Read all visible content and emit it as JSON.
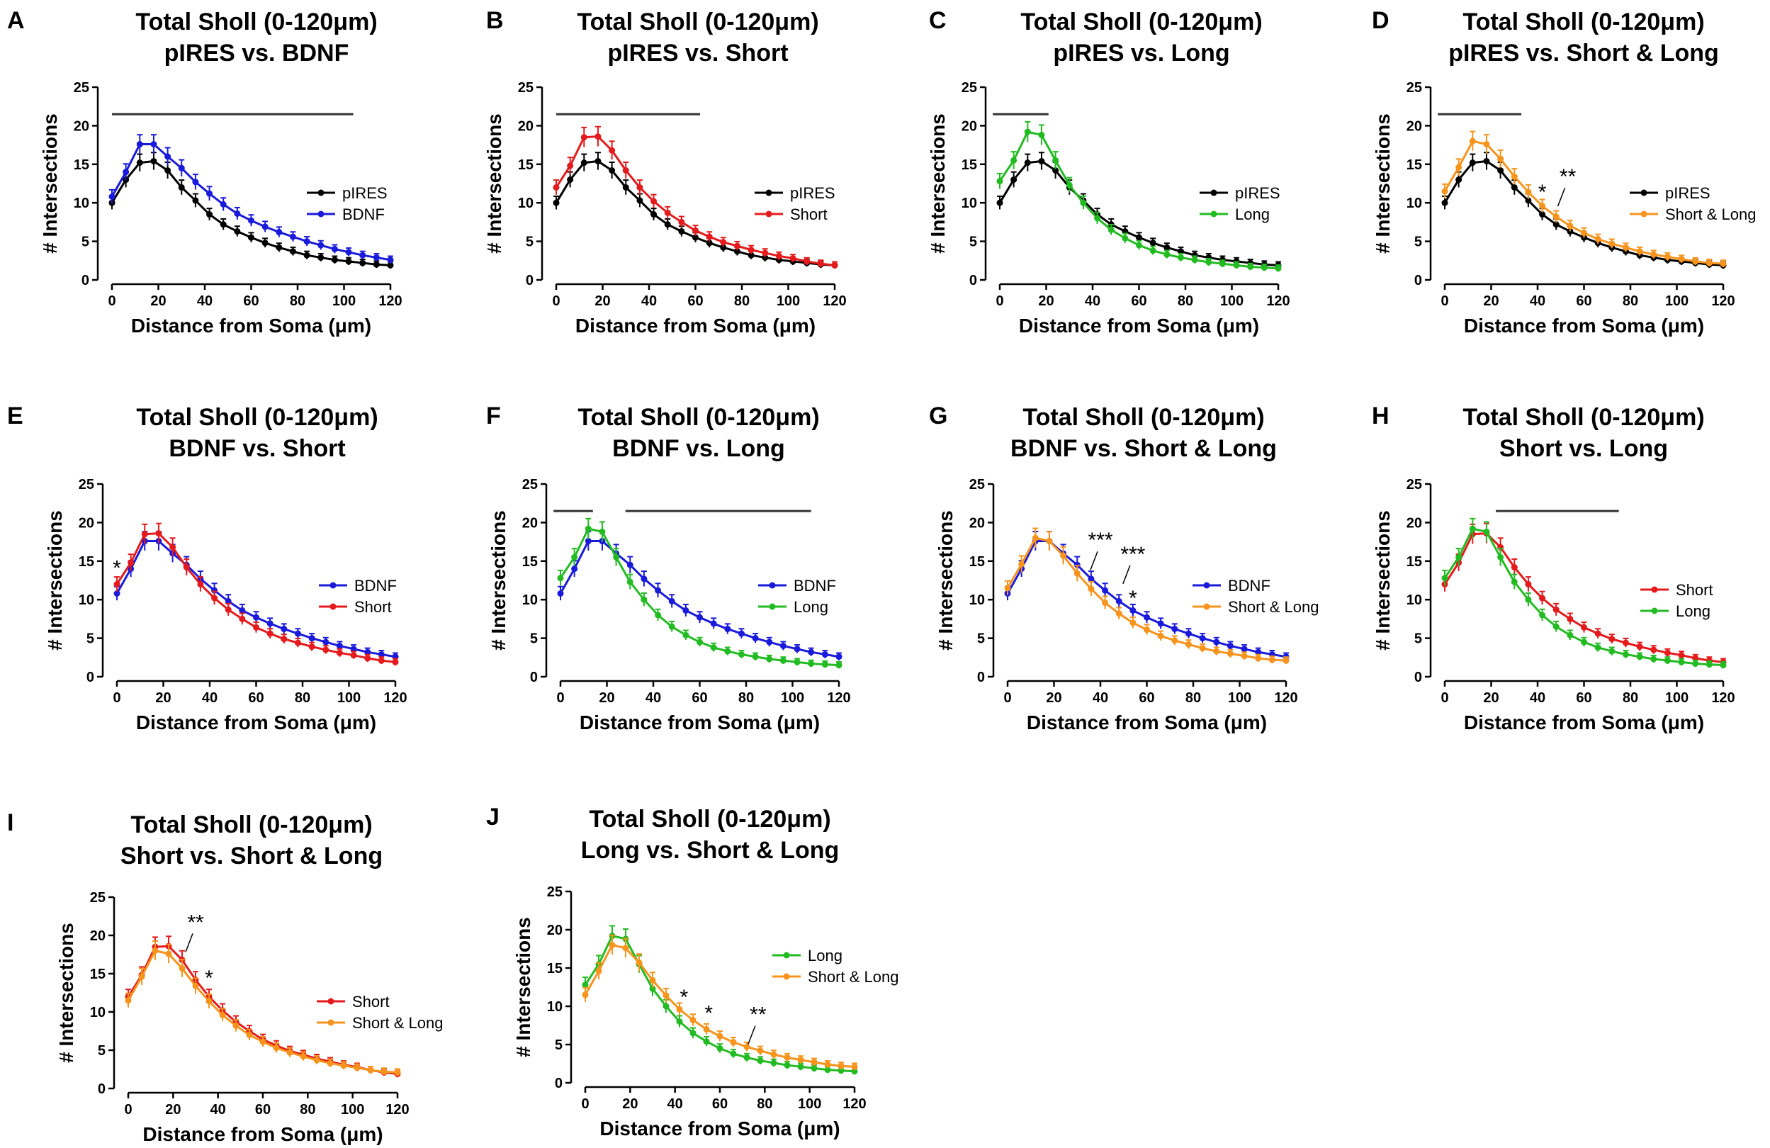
{
  "figure_caption": "",
  "colors": {
    "pIRES": "#000000",
    "BDNF": "#1a1adb",
    "Short": "#e41a1c",
    "Long": "#22bb22",
    "Short & Long": "#f7941d",
    "axis": "#000000",
    "sigbar": "#333333"
  },
  "chart_data": [
    {
      "type": "line",
      "panel": "A",
      "title_line1": "Total Sholl (0-120μm)",
      "title_line2": "pIRES vs. BDNF",
      "xlabel": "Distance from Soma (μm)",
      "ylabel": "# Intersections",
      "xlim": [
        0,
        120
      ],
      "ylim": [
        0,
        25
      ],
      "xticks": [
        0,
        20,
        40,
        60,
        80,
        100,
        120
      ],
      "yticks": [
        0,
        5,
        10,
        15,
        20,
        25
      ],
      "x": [
        0,
        6,
        12,
        18,
        24,
        30,
        36,
        42,
        48,
        54,
        60,
        66,
        72,
        78,
        84,
        90,
        96,
        102,
        108,
        114,
        120
      ],
      "series": [
        {
          "name": "pIRES",
          "values": [
            10.0,
            13.0,
            15.2,
            15.4,
            14.2,
            12.0,
            10.3,
            8.5,
            7.2,
            6.3,
            5.5,
            4.8,
            4.2,
            3.7,
            3.2,
            2.9,
            2.6,
            2.4,
            2.2,
            2.0,
            1.9
          ]
        },
        {
          "name": "BDNF",
          "values": [
            10.8,
            14.0,
            17.6,
            17.6,
            16.0,
            14.5,
            12.7,
            11.2,
            9.8,
            8.6,
            7.7,
            6.9,
            6.2,
            5.6,
            5.0,
            4.5,
            4.0,
            3.6,
            3.2,
            2.9,
            2.6
          ]
        }
      ],
      "sig_bars": [
        [
          0,
          104
        ]
      ],
      "annotations": []
    },
    {
      "type": "line",
      "panel": "B",
      "title_line1": "Total Sholl (0-120μm)",
      "title_line2": "pIRES vs. Short",
      "xlabel": "Distance from Soma (μm)",
      "ylabel": "# Intersections",
      "xlim": [
        0,
        120
      ],
      "ylim": [
        0,
        25
      ],
      "xticks": [
        0,
        20,
        40,
        60,
        80,
        100,
        120
      ],
      "yticks": [
        0,
        5,
        10,
        15,
        20,
        25
      ],
      "x": [
        0,
        6,
        12,
        18,
        24,
        30,
        36,
        42,
        48,
        54,
        60,
        66,
        72,
        78,
        84,
        90,
        96,
        102,
        108,
        114,
        120
      ],
      "series": [
        {
          "name": "pIRES",
          "values": [
            10.0,
            13.0,
            15.2,
            15.4,
            14.2,
            12.0,
            10.3,
            8.5,
            7.2,
            6.3,
            5.5,
            4.8,
            4.2,
            3.7,
            3.2,
            2.9,
            2.6,
            2.4,
            2.2,
            2.0,
            1.9
          ]
        },
        {
          "name": "Short",
          "values": [
            12.0,
            14.8,
            18.5,
            18.6,
            16.8,
            14.2,
            12.0,
            10.2,
            8.7,
            7.5,
            6.4,
            5.6,
            4.9,
            4.4,
            3.9,
            3.5,
            3.1,
            2.8,
            2.4,
            2.1,
            1.9
          ]
        }
      ],
      "sig_bars": [
        [
          0,
          62
        ]
      ],
      "annotations": []
    },
    {
      "type": "line",
      "panel": "C",
      "title_line1": "Total Sholl (0-120μm)",
      "title_line2": "pIRES vs. Long",
      "xlabel": "Distance from Soma (μm)",
      "ylabel": "# Intersections",
      "xlim": [
        0,
        120
      ],
      "ylim": [
        0,
        25
      ],
      "xticks": [
        0,
        20,
        40,
        60,
        80,
        100,
        120
      ],
      "yticks": [
        0,
        5,
        10,
        15,
        20,
        25
      ],
      "x": [
        0,
        6,
        12,
        18,
        24,
        30,
        36,
        42,
        48,
        54,
        60,
        66,
        72,
        78,
        84,
        90,
        96,
        102,
        108,
        114,
        120
      ],
      "series": [
        {
          "name": "pIRES",
          "values": [
            10.0,
            13.0,
            15.2,
            15.4,
            14.2,
            12.0,
            10.3,
            8.5,
            7.2,
            6.3,
            5.5,
            4.8,
            4.2,
            3.7,
            3.2,
            2.9,
            2.6,
            2.4,
            2.2,
            2.0,
            1.9
          ]
        },
        {
          "name": "Long",
          "values": [
            12.8,
            15.5,
            19.2,
            18.8,
            15.5,
            12.3,
            10.0,
            8.0,
            6.5,
            5.4,
            4.5,
            3.8,
            3.3,
            2.9,
            2.6,
            2.3,
            2.1,
            1.9,
            1.7,
            1.6,
            1.5
          ]
        }
      ],
      "sig_bars": [
        [
          -3,
          21
        ]
      ],
      "annotations": []
    },
    {
      "type": "line",
      "panel": "D",
      "title_line1": "Total Sholl (0-120μm)",
      "title_line2": "pIRES vs. Short & Long",
      "xlabel": "Distance from Soma (μm)",
      "ylabel": "# Intersections",
      "xlim": [
        0,
        120
      ],
      "ylim": [
        0,
        25
      ],
      "xticks": [
        0,
        20,
        40,
        60,
        80,
        100,
        120
      ],
      "yticks": [
        0,
        5,
        10,
        15,
        20,
        25
      ],
      "x": [
        0,
        6,
        12,
        18,
        24,
        30,
        36,
        42,
        48,
        54,
        60,
        66,
        72,
        78,
        84,
        90,
        96,
        102,
        108,
        114,
        120
      ],
      "series": [
        {
          "name": "pIRES",
          "values": [
            10.0,
            13.0,
            15.2,
            15.4,
            14.2,
            12.0,
            10.3,
            8.5,
            7.2,
            6.3,
            5.5,
            4.8,
            4.2,
            3.7,
            3.2,
            2.9,
            2.6,
            2.4,
            2.2,
            2.0,
            1.9
          ]
        },
        {
          "name": "Short & Long",
          "values": [
            11.5,
            14.6,
            18.0,
            17.6,
            15.7,
            13.4,
            11.4,
            9.6,
            8.2,
            7.0,
            6.1,
            5.3,
            4.7,
            4.2,
            3.7,
            3.3,
            3.0,
            2.7,
            2.4,
            2.2,
            2.1
          ]
        }
      ],
      "sig_bars": [
        [
          -3,
          33
        ]
      ],
      "annotations": [
        {
          "text": "*",
          "x": 42,
          "y": 10.5
        },
        {
          "text": "**",
          "x": 53,
          "y": 12.5,
          "leader": true
        }
      ]
    },
    {
      "type": "line",
      "panel": "E",
      "title_line1": "Total Sholl (0-120μm)",
      "title_line2": "BDNF vs. Short",
      "xlabel": "Distance from Soma (μm)",
      "ylabel": "# Intersections",
      "xlim": [
        0,
        120
      ],
      "ylim": [
        0,
        25
      ],
      "xticks": [
        0,
        20,
        40,
        60,
        80,
        100,
        120
      ],
      "yticks": [
        0,
        5,
        10,
        15,
        20,
        25
      ],
      "x": [
        0,
        6,
        12,
        18,
        24,
        30,
        36,
        42,
        48,
        54,
        60,
        66,
        72,
        78,
        84,
        90,
        96,
        102,
        108,
        114,
        120
      ],
      "series": [
        {
          "name": "BDNF",
          "values": [
            10.8,
            14.0,
            17.6,
            17.6,
            16.0,
            14.5,
            12.7,
            11.2,
            9.8,
            8.6,
            7.7,
            6.9,
            6.2,
            5.6,
            5.0,
            4.5,
            4.0,
            3.6,
            3.2,
            2.9,
            2.6
          ]
        },
        {
          "name": "Short",
          "values": [
            12.0,
            14.8,
            18.5,
            18.6,
            16.8,
            14.2,
            12.0,
            10.2,
            8.7,
            7.5,
            6.4,
            5.6,
            4.9,
            4.4,
            3.9,
            3.5,
            3.1,
            2.8,
            2.4,
            2.1,
            1.9
          ]
        }
      ],
      "sig_bars": [],
      "annotations": [
        {
          "text": "*",
          "x": 0,
          "y": 13.2
        }
      ]
    },
    {
      "type": "line",
      "panel": "F",
      "title_line1": "Total Sholl (0-120μm)",
      "title_line2": "BDNF vs. Long",
      "xlabel": "Distance from Soma (μm)",
      "ylabel": "# Intersections",
      "xlim": [
        0,
        120
      ],
      "ylim": [
        0,
        25
      ],
      "xticks": [
        0,
        20,
        40,
        60,
        80,
        100,
        120
      ],
      "yticks": [
        0,
        5,
        10,
        15,
        20,
        25
      ],
      "x": [
        0,
        6,
        12,
        18,
        24,
        30,
        36,
        42,
        48,
        54,
        60,
        66,
        72,
        78,
        84,
        90,
        96,
        102,
        108,
        114,
        120
      ],
      "series": [
        {
          "name": "BDNF",
          "values": [
            10.8,
            14.0,
            17.6,
            17.6,
            16.0,
            14.5,
            12.7,
            11.2,
            9.8,
            8.6,
            7.7,
            6.9,
            6.2,
            5.6,
            5.0,
            4.5,
            4.0,
            3.6,
            3.2,
            2.9,
            2.6
          ]
        },
        {
          "name": "Long",
          "values": [
            12.8,
            15.5,
            19.2,
            18.8,
            15.5,
            12.3,
            10.0,
            8.0,
            6.5,
            5.4,
            4.5,
            3.8,
            3.3,
            2.9,
            2.6,
            2.3,
            2.1,
            1.9,
            1.7,
            1.6,
            1.5
          ]
        }
      ],
      "sig_bars": [
        [
          -3,
          14
        ],
        [
          28,
          108
        ]
      ],
      "annotations": []
    },
    {
      "type": "line",
      "panel": "G",
      "title_line1": "Total Sholl (0-120μm)",
      "title_line2": "BDNF vs. Short & Long",
      "xlabel": "Distance from Soma (μm)",
      "ylabel": "# Intersections",
      "xlim": [
        0,
        120
      ],
      "ylim": [
        0,
        25
      ],
      "xticks": [
        0,
        20,
        40,
        60,
        80,
        100,
        120
      ],
      "yticks": [
        0,
        5,
        10,
        15,
        20,
        25
      ],
      "x": [
        0,
        6,
        12,
        18,
        24,
        30,
        36,
        42,
        48,
        54,
        60,
        66,
        72,
        78,
        84,
        90,
        96,
        102,
        108,
        114,
        120
      ],
      "series": [
        {
          "name": "BDNF",
          "values": [
            10.8,
            14.0,
            17.6,
            17.6,
            16.0,
            14.5,
            12.7,
            11.2,
            9.8,
            8.6,
            7.7,
            6.9,
            6.2,
            5.6,
            5.0,
            4.5,
            4.0,
            3.6,
            3.2,
            2.9,
            2.6
          ]
        },
        {
          "name": "Short & Long",
          "values": [
            11.5,
            14.6,
            18.0,
            17.6,
            15.7,
            13.4,
            11.4,
            9.6,
            8.2,
            7.0,
            6.1,
            5.3,
            4.7,
            4.2,
            3.7,
            3.3,
            3.0,
            2.7,
            2.4,
            2.2,
            2.1
          ]
        }
      ],
      "sig_bars": [],
      "annotations": [
        {
          "text": "***",
          "x": 40,
          "y": 16.8,
          "leader": true
        },
        {
          "text": "***",
          "x": 54,
          "y": 15.0,
          "leader": true
        },
        {
          "text": "*",
          "x": 54,
          "y": 9.3
        }
      ]
    },
    {
      "type": "line",
      "panel": "H",
      "title_line1": "Total Sholl (0-120μm)",
      "title_line2": "Short vs. Long",
      "xlabel": "Distance from Soma (μm)",
      "ylabel": "# Intersections",
      "xlim": [
        0,
        120
      ],
      "ylim": [
        0,
        25
      ],
      "xticks": [
        0,
        20,
        40,
        60,
        80,
        100,
        120
      ],
      "yticks": [
        0,
        5,
        10,
        15,
        20,
        25
      ],
      "x": [
        0,
        6,
        12,
        18,
        24,
        30,
        36,
        42,
        48,
        54,
        60,
        66,
        72,
        78,
        84,
        90,
        96,
        102,
        108,
        114,
        120
      ],
      "series": [
        {
          "name": "Short",
          "values": [
            12.0,
            14.8,
            18.5,
            18.6,
            16.8,
            14.2,
            12.0,
            10.2,
            8.7,
            7.5,
            6.4,
            5.6,
            4.9,
            4.4,
            3.9,
            3.5,
            3.1,
            2.8,
            2.4,
            2.1,
            1.9
          ]
        },
        {
          "name": "Long",
          "values": [
            12.8,
            15.5,
            19.2,
            18.8,
            15.5,
            12.3,
            10.0,
            8.0,
            6.5,
            5.4,
            4.5,
            3.8,
            3.3,
            2.9,
            2.6,
            2.3,
            2.1,
            1.9,
            1.7,
            1.6,
            1.5
          ]
        }
      ],
      "sig_bars": [
        [
          22,
          75
        ]
      ],
      "annotations": []
    },
    {
      "type": "line",
      "panel": "I",
      "title_line1": "Total Sholl (0-120μm)",
      "title_line2": "Short vs. Short & Long",
      "xlabel": "Distance from Soma (μm)",
      "ylabel": "# Intersections",
      "xlim": [
        0,
        120
      ],
      "ylim": [
        0,
        25
      ],
      "xticks": [
        0,
        20,
        40,
        60,
        80,
        100,
        120
      ],
      "yticks": [
        0,
        5,
        10,
        15,
        20,
        25
      ],
      "x": [
        0,
        6,
        12,
        18,
        24,
        30,
        36,
        42,
        48,
        54,
        60,
        66,
        72,
        78,
        84,
        90,
        96,
        102,
        108,
        114,
        120
      ],
      "series": [
        {
          "name": "Short",
          "values": [
            12.0,
            14.8,
            18.5,
            18.6,
            16.8,
            14.2,
            12.0,
            10.2,
            8.7,
            7.5,
            6.4,
            5.6,
            4.9,
            4.4,
            3.9,
            3.5,
            3.1,
            2.8,
            2.4,
            2.1,
            1.9
          ]
        },
        {
          "name": "Short & Long",
          "values": [
            11.5,
            14.6,
            18.0,
            17.6,
            15.7,
            13.4,
            11.4,
            9.6,
            8.2,
            7.0,
            6.1,
            5.3,
            4.7,
            4.2,
            3.7,
            3.3,
            3.0,
            2.7,
            2.4,
            2.2,
            2.1
          ]
        }
      ],
      "sig_bars": [],
      "annotations": [
        {
          "text": "**",
          "x": 30,
          "y": 20.8,
          "leader": true
        },
        {
          "text": "*",
          "x": 36,
          "y": 13.5
        }
      ]
    },
    {
      "type": "line",
      "panel": "J",
      "title_line1": "Total Sholl (0-120μm)",
      "title_line2": "Long vs. Short & Long",
      "xlabel": "Distance from Soma (μm)",
      "ylabel": "# Intersections",
      "xlim": [
        0,
        120
      ],
      "ylim": [
        0,
        25
      ],
      "xticks": [
        0,
        20,
        40,
        60,
        80,
        100,
        120
      ],
      "yticks": [
        0,
        5,
        10,
        15,
        20,
        25
      ],
      "x": [
        0,
        6,
        12,
        18,
        24,
        30,
        36,
        42,
        48,
        54,
        60,
        66,
        72,
        78,
        84,
        90,
        96,
        102,
        108,
        114,
        120
      ],
      "series": [
        {
          "name": "Long",
          "values": [
            12.8,
            15.5,
            19.2,
            18.8,
            15.5,
            12.3,
            10.0,
            8.0,
            6.5,
            5.4,
            4.5,
            3.8,
            3.3,
            2.9,
            2.6,
            2.3,
            2.1,
            1.9,
            1.7,
            1.6,
            1.5
          ]
        },
        {
          "name": "Short & Long",
          "values": [
            11.5,
            14.6,
            18.0,
            17.6,
            15.7,
            13.4,
            11.4,
            9.6,
            8.2,
            7.0,
            6.1,
            5.3,
            4.7,
            4.2,
            3.7,
            3.3,
            3.0,
            2.7,
            2.4,
            2.2,
            2.1
          ]
        }
      ],
      "sig_bars": [],
      "annotations": [
        {
          "text": "*",
          "x": 44,
          "y": 10.3
        },
        {
          "text": "*",
          "x": 55,
          "y": 8.2
        },
        {
          "text": "**",
          "x": 77,
          "y": 8.0,
          "leader": true
        }
      ]
    }
  ]
}
